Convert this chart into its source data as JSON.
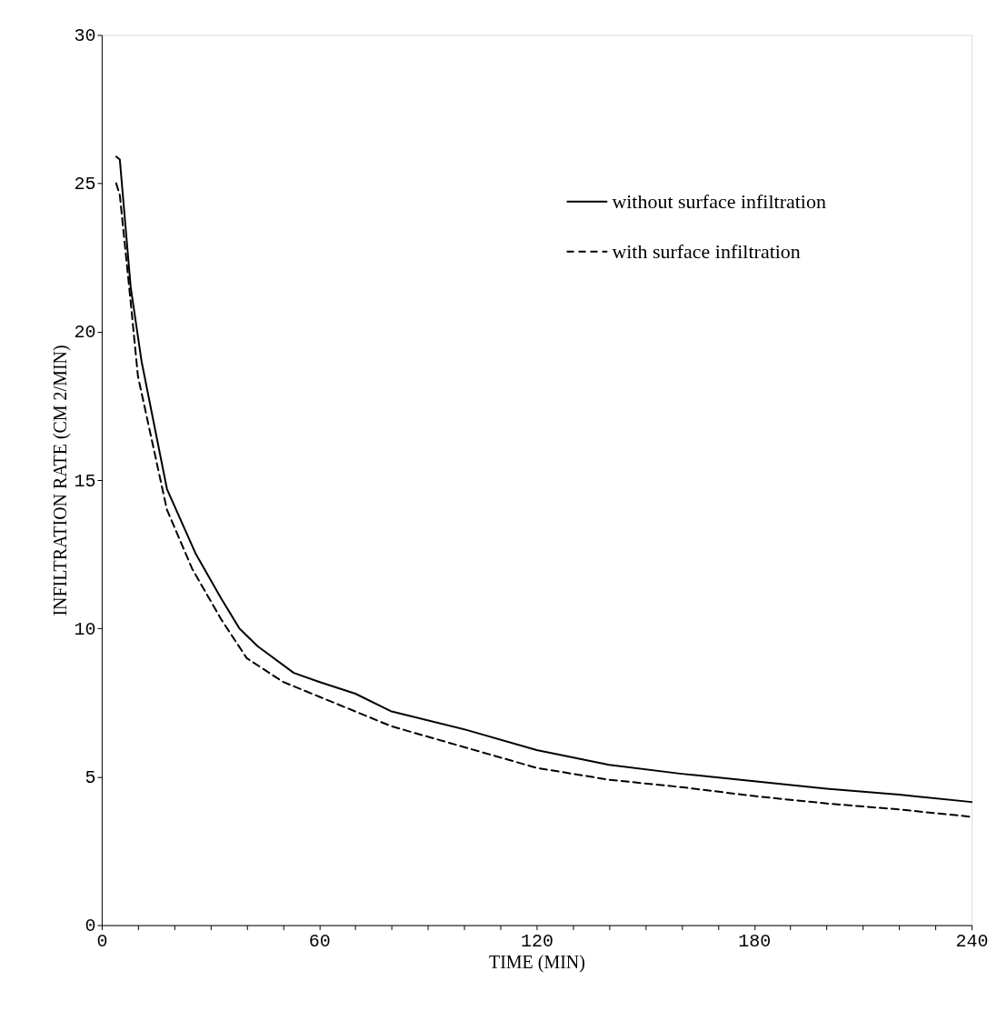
{
  "chart_data": {
    "type": "line",
    "xlabel": "TIME (MIN)",
    "ylabel": "INFILTRATION RATE (CM 2/MIN)",
    "xlim": [
      0,
      240
    ],
    "ylim": [
      0,
      30
    ],
    "xticks": [
      0,
      {
        "value": 10,
        "label": null
      },
      {
        "value": 20,
        "label": null
      },
      {
        "value": 30,
        "label": null
      },
      {
        "value": 40,
        "label": null
      },
      {
        "value": 50,
        "label": null
      },
      60,
      {
        "value": 70,
        "label": null
      },
      {
        "value": 80,
        "label": null
      },
      {
        "value": 90,
        "label": null
      },
      {
        "value": 100,
        "label": null
      },
      {
        "value": 110,
        "label": null
      },
      120,
      {
        "value": 130,
        "label": null
      },
      {
        "value": 140,
        "label": null
      },
      {
        "value": 150,
        "label": null
      },
      {
        "value": 160,
        "label": null
      },
      {
        "value": 170,
        "label": null
      },
      180,
      {
        "value": 190,
        "label": null
      },
      {
        "value": 200,
        "label": null
      },
      {
        "value": 210,
        "label": null
      },
      {
        "value": 220,
        "label": null
      },
      {
        "value": 230,
        "label": null
      },
      240
    ],
    "yticks": [
      0,
      5,
      10,
      15,
      20,
      25,
      30
    ],
    "grid": false,
    "legend": "top right",
    "marker": "none",
    "series": [
      {
        "name": "without surface infiltration",
        "color": "#000000",
        "line_style": "solid",
        "x": [
          4,
          5,
          8,
          11,
          18,
          26,
          33,
          38,
          43,
          53,
          60,
          70,
          80,
          100,
          120,
          140,
          160,
          180,
          200,
          220,
          240
        ],
        "values": [
          25.9,
          25.8,
          21.5,
          19,
          14.7,
          12.5,
          11,
          10,
          9.4,
          8.5,
          8.2,
          7.8,
          7.2,
          6.6,
          5.9,
          5.4,
          5.1,
          4.85,
          4.6,
          4.4,
          4.15
        ]
      },
      {
        "name": "with surface infiltration",
        "color": "#000000",
        "line_style": "dashed",
        "x": [
          4,
          5,
          8,
          10,
          18,
          25,
          33,
          40,
          50,
          60,
          70,
          80,
          100,
          120,
          140,
          160,
          180,
          200,
          220,
          240
        ],
        "values": [
          25,
          24.6,
          21,
          18.5,
          14,
          12,
          10.3,
          9,
          8.2,
          7.7,
          7.2,
          6.7,
          6,
          5.3,
          4.9,
          4.65,
          4.35,
          4.1,
          3.9,
          3.65
        ]
      }
    ]
  }
}
